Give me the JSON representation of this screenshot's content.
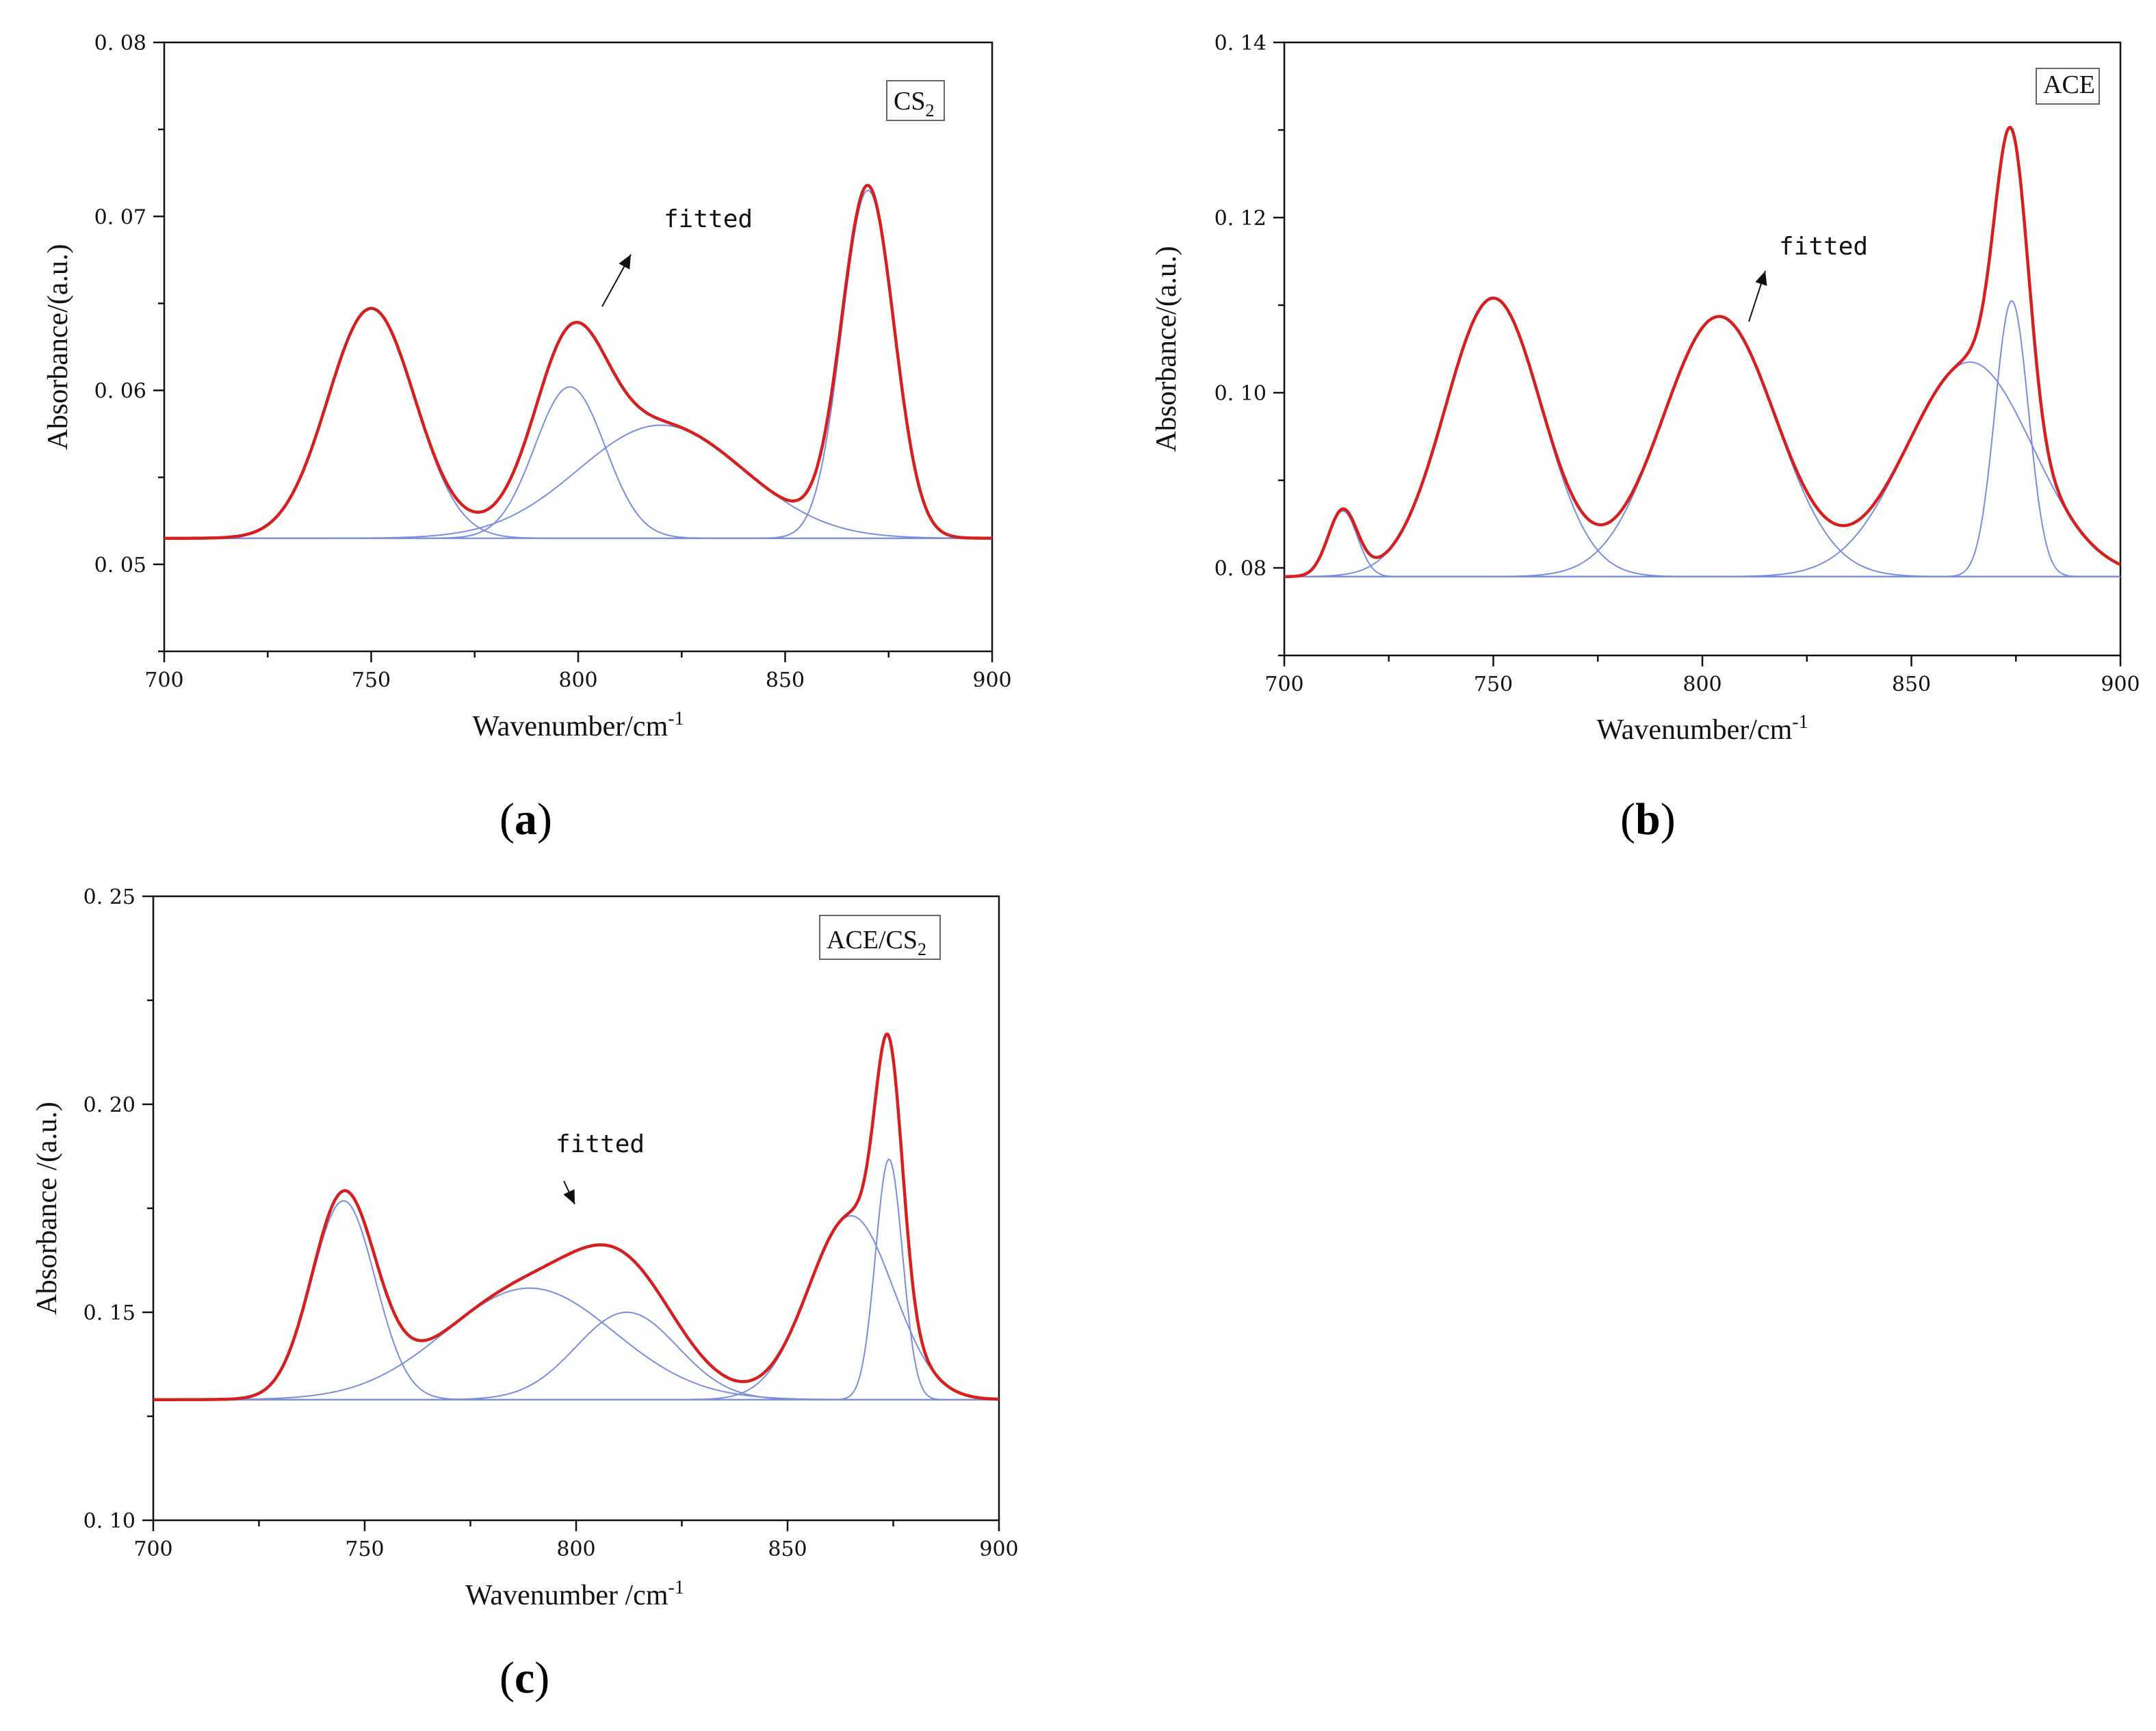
{
  "figure": {
    "captions": {
      "a": "a",
      "b": "b",
      "c": "c"
    }
  },
  "chart_data": [
    {
      "id": "a",
      "type": "line",
      "title": "",
      "tag": "CS",
      "tag_sub": "2",
      "annotation": "fitted",
      "xlabel": "Wavenumber/cm",
      "xlabel_sup": "-1",
      "ylabel": "Absorbance/(a.u.)",
      "xlim": [
        700,
        900
      ],
      "ylim": [
        0.045,
        0.08
      ],
      "xticks": [
        700,
        750,
        800,
        850,
        900
      ],
      "xtick_labels": [
        "700",
        "750",
        "800",
        "850",
        "900"
      ],
      "yticks": [
        0.05,
        0.06,
        0.07,
        0.08
      ],
      "ytick_labels": [
        "0. 05",
        "0. 06",
        "0. 07",
        "0. 08"
      ],
      "baseline": 0.0515,
      "components": [
        {
          "center": 750,
          "height": 0.0132,
          "width": 10.5
        },
        {
          "center": 798,
          "height": 0.0087,
          "width": 8.5
        },
        {
          "center": 820,
          "height": 0.0065,
          "width": 20
        },
        {
          "center": 870,
          "height": 0.02,
          "width": 6.3
        }
      ],
      "series_colors": {
        "fitted": "#d42020",
        "component": "#7a8ce0",
        "baseline": "#9aaaf0"
      }
    },
    {
      "id": "b",
      "type": "line",
      "title": "",
      "tag": "ACE",
      "tag_sub": "",
      "annotation": "fitted",
      "xlabel": "Wavenumber/cm",
      "xlabel_sup": "-1",
      "ylabel": "Absorbance/(a.u.)",
      "xlim": [
        700,
        900
      ],
      "ylim": [
        0.07,
        0.14
      ],
      "xticks": [
        700,
        750,
        800,
        850,
        900
      ],
      "xtick_labels": [
        "700",
        "750",
        "800",
        "850",
        "900"
      ],
      "yticks": [
        0.08,
        0.1,
        0.12,
        0.14
      ],
      "ytick_labels": [
        "0. 08",
        "0. 10",
        "0. 12",
        "0. 14"
      ],
      "baseline": 0.079,
      "components": [
        {
          "center": 714,
          "height": 0.0075,
          "width": 3.5
        },
        {
          "center": 750,
          "height": 0.0318,
          "width": 11.5
        },
        {
          "center": 804,
          "height": 0.0297,
          "width": 13.5
        },
        {
          "center": 864,
          "height": 0.0245,
          "width": 15
        },
        {
          "center": 874,
          "height": 0.0315,
          "width": 4.0
        }
      ],
      "series_colors": {
        "fitted": "#d42020",
        "component": "#7a8ce0",
        "baseline": "#9aaaf0"
      }
    },
    {
      "id": "c",
      "type": "line",
      "title": "",
      "tag": "ACE/CS",
      "tag_sub": "2",
      "annotation": "fitted",
      "xlabel": "Wavenumber /cm",
      "xlabel_sup": "-1",
      "ylabel": "Absorbance /(a.u.)",
      "xlim": [
        700,
        900
      ],
      "ylim": [
        0.1,
        0.25
      ],
      "xticks": [
        700,
        750,
        800,
        850,
        900
      ],
      "xtick_labels": [
        "700",
        "750",
        "800",
        "850",
        "900"
      ],
      "yticks": [
        0.1,
        0.15,
        0.2,
        0.25
      ],
      "ytick_labels": [
        "0. 10",
        "0. 15",
        "0. 20",
        "0. 25"
      ],
      "baseline": 0.129,
      "components": [
        {
          "center": 745,
          "height": 0.0478,
          "width": 7.5
        },
        {
          "center": 789,
          "height": 0.0268,
          "width": 20
        },
        {
          "center": 812,
          "height": 0.021,
          "width": 12
        },
        {
          "center": 865,
          "height": 0.0442,
          "width": 10
        },
        {
          "center": 874,
          "height": 0.0578,
          "width": 3.2
        }
      ],
      "series_colors": {
        "fitted": "#d42020",
        "component": "#7a8ce0",
        "baseline": "#9aaaf0"
      }
    }
  ]
}
